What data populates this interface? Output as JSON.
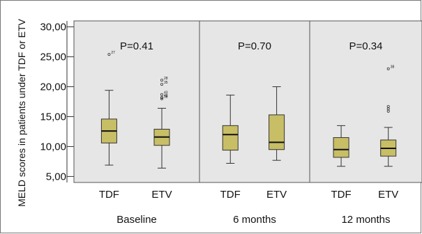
{
  "chart_data": {
    "type": "box",
    "ylabel": "MELD scores in patients under TDF or ETV",
    "ylim": [
      4,
      31
    ],
    "yticks": [
      5,
      10,
      15,
      20,
      25,
      30
    ],
    "ytick_labels": [
      "5,00",
      "10,00",
      "15,00",
      "20,00",
      "25,00",
      "30,00"
    ],
    "panels": [
      {
        "label": "Baseline",
        "p_value": "P=0.41",
        "boxes": [
          {
            "category": "TDF",
            "min": 6.9,
            "q1": 10.6,
            "median": 12.6,
            "q3": 14.6,
            "max": 19.4,
            "outliers": [
              {
                "value": 25.4,
                "label": "27"
              }
            ]
          },
          {
            "category": "ETV",
            "min": 6.4,
            "q1": 10.2,
            "median": 11.6,
            "q3": 12.9,
            "max": 16.4,
            "outliers": [
              {
                "value": 20.4,
                "label": "35"
              },
              {
                "value": 21.1,
                "label": "28"
              },
              {
                "value": 18.7,
                "label": "43"
              },
              {
                "value": 18.2,
                "label": "48"
              },
              {
                "value": 18.0,
                "label": "38"
              }
            ]
          }
        ]
      },
      {
        "label": "6 months",
        "p_value": "P=0.70",
        "boxes": [
          {
            "category": "TDF",
            "min": 7.2,
            "q1": 9.4,
            "median": 12.0,
            "q3": 13.5,
            "max": 18.6,
            "outliers": []
          },
          {
            "category": "ETV",
            "min": 7.7,
            "q1": 9.5,
            "median": 10.7,
            "q3": 15.3,
            "max": 20.0,
            "outliers": []
          }
        ]
      },
      {
        "label": "12 months",
        "p_value": "P=0.34",
        "boxes": [
          {
            "category": "TDF",
            "min": 6.7,
            "q1": 8.2,
            "median": 9.5,
            "q3": 11.5,
            "max": 13.5,
            "outliers": []
          },
          {
            "category": "ETV",
            "min": 6.7,
            "q1": 8.4,
            "median": 9.7,
            "q3": 11.1,
            "max": 13.2,
            "outliers": [
              {
                "value": 23.0,
                "label": "38"
              },
              {
                "value": 16.7,
                "label": ""
              },
              {
                "value": 16.3,
                "label": ""
              },
              {
                "value": 15.9,
                "label": ""
              }
            ]
          }
        ]
      }
    ],
    "colors": {
      "box_fill": "#c8be66",
      "box_stroke": "#333333",
      "panel_bg": "#e6e6e6",
      "panel_stroke": "#555555"
    }
  }
}
